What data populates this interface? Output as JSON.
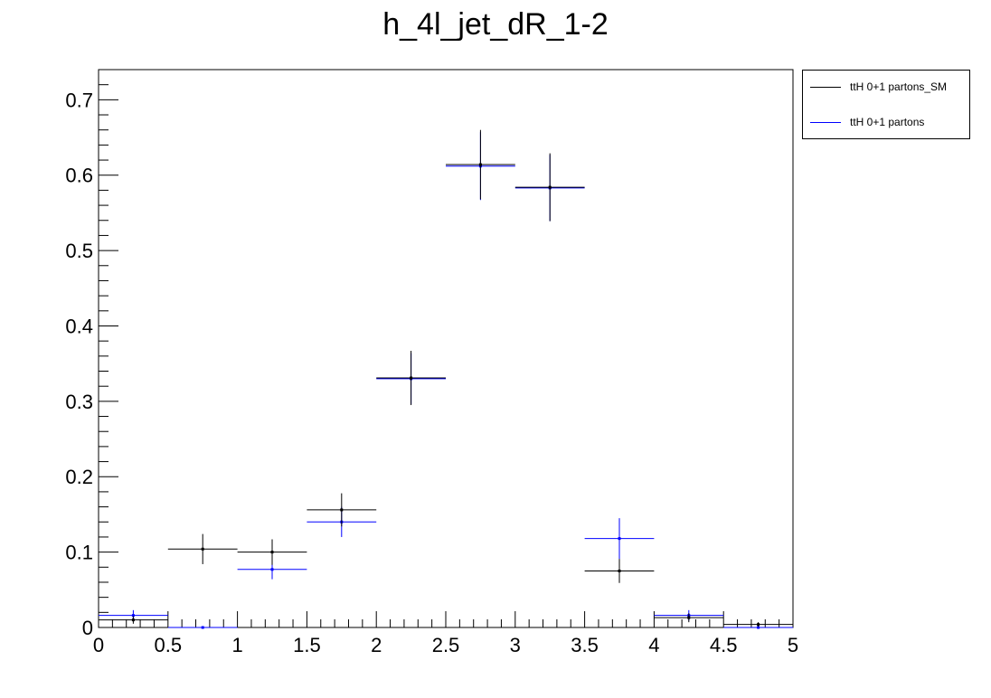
{
  "chart_data": {
    "type": "scatter",
    "title": "h_4l_jet_dR_1-2",
    "xlabel": "",
    "ylabel": "",
    "xlim": [
      0,
      5
    ],
    "ylim": [
      0,
      0.74
    ],
    "x_ticks": [
      "0",
      "0.5",
      "1",
      "1.5",
      "2",
      "2.5",
      "3",
      "3.5",
      "4",
      "4.5",
      "5"
    ],
    "y_ticks": [
      "0",
      "0.1",
      "0.2",
      "0.3",
      "0.4",
      "0.5",
      "0.6",
      "0.7"
    ],
    "bin_edges": [
      0,
      0.5,
      1,
      1.5,
      2,
      2.5,
      3,
      3.5,
      4,
      4.5,
      5
    ],
    "grid": false,
    "legend_position": "outside-top-right",
    "series": [
      {
        "name": "ttH 0+1 partons_SM",
        "color": "#000000",
        "x": [
          0.25,
          0.75,
          1.25,
          1.75,
          2.25,
          2.75,
          3.25,
          3.75,
          4.25,
          4.75
        ],
        "values": [
          0.01,
          0.104,
          0.1,
          0.156,
          0.331,
          0.614,
          0.584,
          0.075,
          0.013,
          0.004
        ],
        "errors": [
          0.005,
          0.02,
          0.017,
          0.022,
          0.036,
          0.046,
          0.045,
          0.016,
          0.006,
          0.003
        ]
      },
      {
        "name": "ttH 0+1 partons",
        "color": "#0000ff",
        "x": [
          0.25,
          0.75,
          1.25,
          1.75,
          2.25,
          2.75,
          3.25,
          3.75,
          4.25,
          4.75
        ],
        "values": [
          0.016,
          0.0,
          0.077,
          0.14,
          0.33,
          0.612,
          0.583,
          0.118,
          0.016,
          0.0
        ],
        "errors": [
          0.007,
          0.0,
          0.013,
          0.02,
          0.034,
          0.045,
          0.044,
          0.027,
          0.007,
          0.0
        ]
      }
    ]
  }
}
